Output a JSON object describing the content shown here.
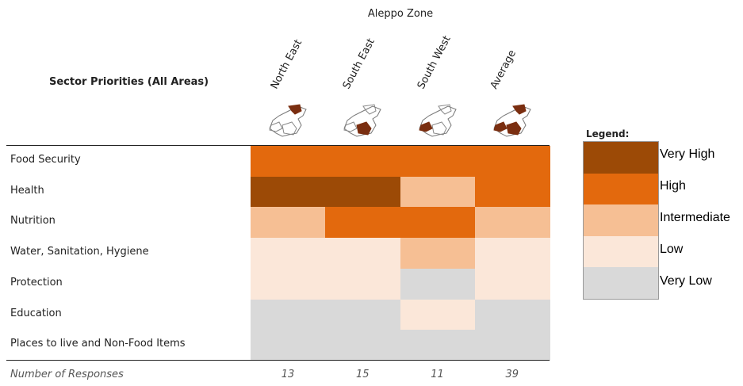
{
  "header": {
    "zone_title": "Aleppo Zone",
    "sector_title": "Sector Priorities (All Areas)"
  },
  "colors": {
    "Very High": "#9c4a06",
    "High": "#e3690d",
    "Intermediate": "#f6bf94",
    "Low": "#fbe7d9",
    "Very Low": "#d9d9d9",
    "map_fill": "#7a2e10"
  },
  "chart_data": {
    "type": "heatmap",
    "title": "Sector Priorities (All Areas)",
    "group_label": "Aleppo Zone",
    "columns": [
      "North East",
      "South East",
      "South West",
      "Average"
    ],
    "rows": [
      "Food Security",
      "Health",
      "Nutrition",
      "Water, Sanitation, Hygiene",
      "Protection",
      "Education",
      "Places to live and Non-Food Items"
    ],
    "values": [
      [
        "High",
        "High",
        "High",
        "High"
      ],
      [
        "Very High",
        "Very High",
        "Intermediate",
        "High"
      ],
      [
        "Intermediate",
        "High",
        "High",
        "Intermediate"
      ],
      [
        "Low",
        "Low",
        "Intermediate",
        "Low"
      ],
      [
        "Low",
        "Low",
        "Very Low",
        "Low"
      ],
      [
        "Very Low",
        "Very Low",
        "Low",
        "Very Low"
      ],
      [
        "Very Low",
        "Very Low",
        "Very Low",
        "Very Low"
      ]
    ],
    "responses_label": "Number of Responses",
    "responses": [
      13,
      15,
      11,
      39
    ],
    "legend_title": "Legend:",
    "legend": [
      "Very High",
      "High",
      "Intermediate",
      "Low",
      "Very Low"
    ]
  }
}
